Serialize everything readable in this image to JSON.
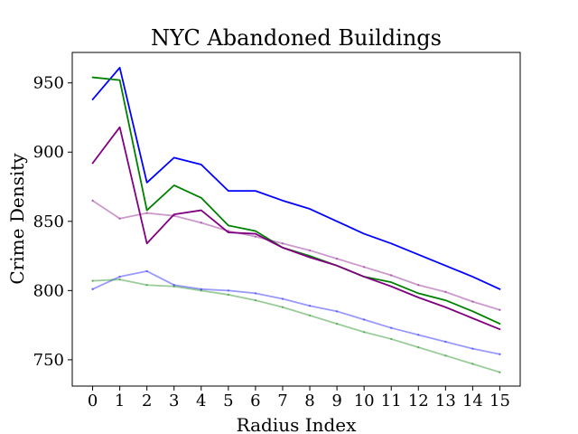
{
  "chart_data": {
    "type": "line",
    "title": "NYC Abandoned Buildings",
    "xlabel": "Radius Index",
    "ylabel": "Crime Density",
    "x": [
      0,
      1,
      2,
      3,
      4,
      5,
      6,
      7,
      8,
      9,
      10,
      11,
      12,
      13,
      14,
      15
    ],
    "xticks": [
      0,
      1,
      2,
      3,
      4,
      5,
      6,
      7,
      8,
      9,
      10,
      11,
      12,
      13,
      14,
      15
    ],
    "yticks": [
      750,
      800,
      850,
      900,
      950
    ],
    "xlim": [
      -0.75,
      15.75
    ],
    "ylim": [
      731,
      972
    ],
    "grid": false,
    "legend": "none",
    "series": [
      {
        "color": "#0000ff",
        "opacity": 1.0,
        "values": [
          938,
          961,
          878,
          896,
          891,
          872,
          872,
          865,
          859,
          850,
          841,
          834,
          826,
          818,
          810,
          801
        ]
      },
      {
        "color": "#008000",
        "opacity": 1.0,
        "values": [
          954,
          952,
          858,
          876,
          867,
          847,
          843,
          831,
          825,
          818,
          810,
          806,
          798,
          793,
          785,
          776
        ]
      },
      {
        "color": "#800080",
        "opacity": 1.0,
        "values": [
          892,
          918,
          834,
          855,
          858,
          842,
          841,
          831,
          824,
          818,
          810,
          803,
          795,
          788,
          780,
          772
        ]
      },
      {
        "color": "#800080",
        "opacity": 0.4,
        "values": [
          865,
          852,
          856,
          854,
          849,
          843,
          839,
          834,
          829,
          823,
          817,
          811,
          804,
          799,
          792,
          786
        ]
      },
      {
        "color": "#0000ff",
        "opacity": 0.4,
        "values": [
          801,
          810,
          814,
          804,
          801,
          800,
          798,
          794,
          789,
          785,
          779,
          773,
          768,
          763,
          758,
          754
        ]
      },
      {
        "color": "#008000",
        "opacity": 0.4,
        "values": [
          807,
          808,
          804,
          803,
          800,
          797,
          793,
          788,
          782,
          776,
          770,
          765,
          759,
          753,
          747,
          741
        ]
      }
    ]
  }
}
